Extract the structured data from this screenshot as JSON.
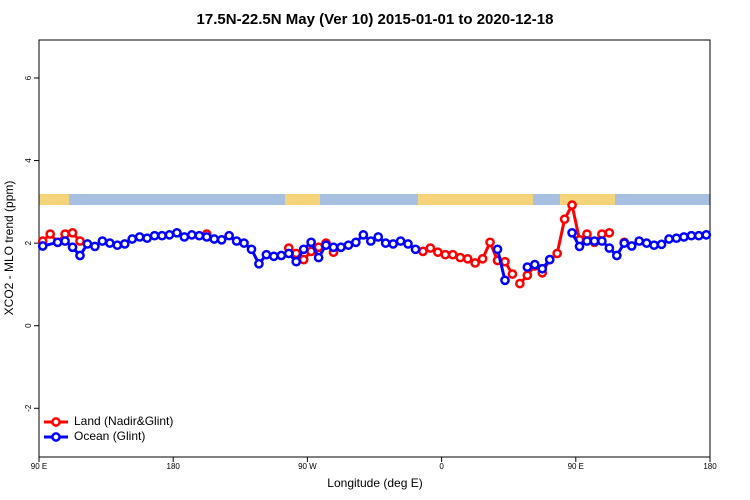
{
  "chart_data": {
    "type": "line",
    "title": "17.5N-22.5N May (Ver 10)   2015-01-01 to 2020-12-18",
    "x_label": "Longitude (deg E)",
    "y_label": "XCO2 - MLO trend (ppm)",
    "xlim": [
      90,
      540
    ],
    "xticks": [
      {
        "value": 90,
        "label": "90 E"
      },
      180,
      {
        "value": 270,
        "label": "90 W"
      },
      {
        "value": 360,
        "label": "0"
      },
      {
        "value": 450,
        "label": "90 E"
      },
      {
        "value": 540,
        "label": "180"
      }
    ],
    "ylim": [
      -3.18,
      6.92
    ],
    "yticks": [
      -2,
      0,
      2,
      4,
      6
    ],
    "legend": "bottom-left",
    "series": [
      {
        "name": "Land (Nadir&Glint)",
        "color": "#ff0000",
        "x": [
          92.5,
          97.5,
          102.5,
          107.5,
          112.5,
          117.5,
          122.5,
          202.5,
          207.5,
          257.5,
          262.5,
          267.5,
          272.5,
          277.5,
          282.5,
          287.5,
          292.5,
          347.5,
          352.5,
          357.5,
          362.5,
          367.5,
          372.5,
          377.5,
          382.5,
          387.5,
          392.5,
          397.5,
          402.5,
          407.5,
          410,
          412.5,
          417.5,
          422.5,
          427.5,
          432.5,
          437.5,
          442.5,
          447.5,
          452.5,
          457.5,
          462.5,
          467.5,
          472.5,
          477.5,
          482.5
        ],
        "values": [
          2.05,
          2.22,
          2.02,
          2.22,
          2.25,
          2.05,
          null,
          2.22,
          null,
          1.88,
          1.75,
          1.6,
          1.8,
          1.9,
          2.0,
          1.78,
          null,
          1.8,
          1.88,
          1.78,
          1.72,
          1.72,
          1.65,
          1.62,
          1.52,
          1.62,
          2.02,
          1.58,
          1.55,
          1.25,
          null,
          1.02,
          1.22,
          1.45,
          1.28,
          1.6,
          1.75,
          2.58,
          2.92,
          2.08,
          2.22,
          2.02,
          2.22,
          2.25,
          null,
          2.02
        ]
      },
      {
        "name": "Ocean (Glint)",
        "color": "#0000ff",
        "x": [
          92.5,
          102.5,
          107.5,
          112.5,
          117.5,
          122.5,
          127.5,
          132.5,
          137.5,
          142.5,
          147.5,
          152.5,
          157.5,
          162.5,
          167.5,
          172.5,
          177.5,
          182.5,
          187.5,
          192.5,
          197.5,
          202.5,
          207.5,
          212.5,
          217.5,
          222.5,
          227.5,
          232.5,
          237.5,
          242.5,
          247.5,
          252.5,
          257.5,
          262.5,
          267.5,
          272.5,
          277.5,
          282.5,
          287.5,
          292.5,
          297.5,
          302.5,
          307.5,
          312.5,
          317.5,
          322.5,
          327.5,
          332.5,
          337.5,
          342.5,
          345,
          397.5,
          402.5,
          410,
          417.5,
          422.5,
          427.5,
          432.5,
          440,
          447.5,
          452.5,
          457.5,
          462.5,
          467.5,
          472.5,
          477.5,
          482.5,
          487.5,
          492.5,
          497.5,
          502.5,
          507.5,
          512.5,
          517.5,
          522.5,
          527.5,
          532.5,
          537.5
        ],
        "values": [
          1.93,
          2.02,
          2.05,
          1.9,
          1.7,
          1.98,
          1.92,
          2.05,
          2.0,
          1.95,
          1.98,
          2.1,
          2.15,
          2.12,
          2.18,
          2.18,
          2.2,
          2.25,
          2.15,
          2.2,
          2.18,
          2.15,
          2.1,
          2.08,
          2.18,
          2.05,
          2.0,
          1.85,
          1.5,
          1.72,
          1.68,
          1.7,
          1.75,
          1.55,
          1.85,
          2.02,
          1.65,
          1.95,
          1.9,
          1.9,
          1.95,
          2.02,
          2.2,
          2.05,
          2.15,
          2.0,
          1.98,
          2.05,
          1.98,
          1.85,
          null,
          1.85,
          1.1,
          null,
          1.42,
          1.48,
          1.38,
          1.6,
          null,
          2.25,
          1.92,
          2.05,
          2.05,
          2.05,
          1.88,
          1.7,
          2.0,
          1.93,
          2.05,
          2.0,
          1.95,
          1.97,
          2.1,
          2.12,
          2.15,
          2.18,
          2.18,
          2.2
        ]
      }
    ]
  }
}
